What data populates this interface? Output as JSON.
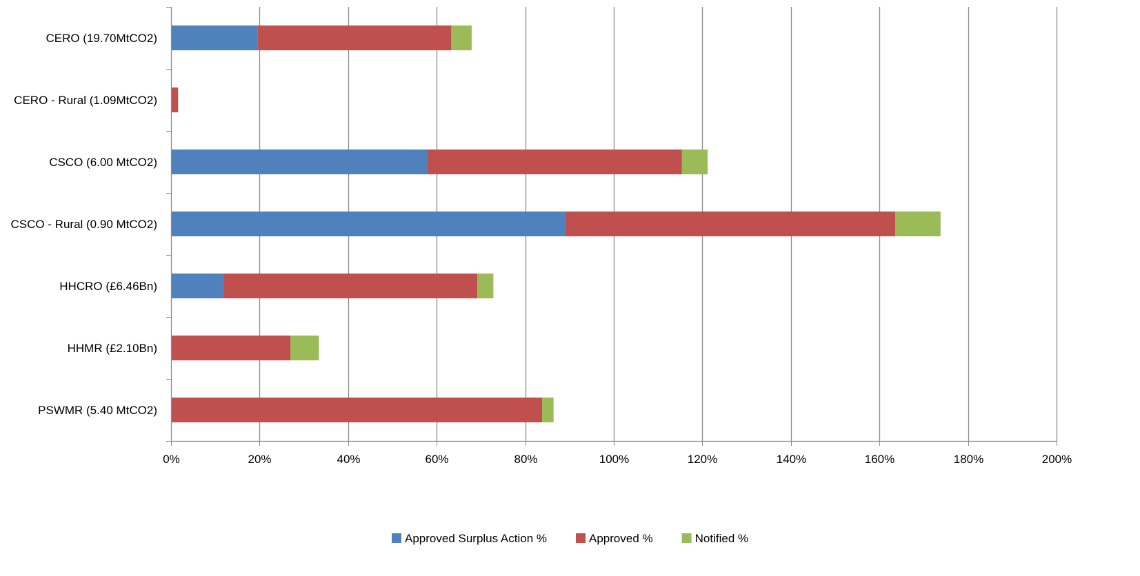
{
  "chart_data": {
    "type": "bar",
    "orientation": "horizontal",
    "stacked": true,
    "title": "",
    "xlabel": "",
    "ylabel": "",
    "categories": [
      "CERO (19.70MtCO2)",
      "CERO - Rural (1.09MtCO2)",
      "CSCO (6.00 MtCO2)",
      "CSCO - Rural (0.90 MtCO2)",
      "HHCRO (£6.46Bn)",
      "HHMR (£2.10Bn)",
      "PSWMR (5.40 MtCO2)"
    ],
    "series": [
      {
        "name": "Approved Surplus Action %",
        "color": "#4F81BD",
        "values": [
          19.5,
          0,
          57.8,
          89,
          11.8,
          0,
          0
        ]
      },
      {
        "name": "Approved %",
        "color": "#C0504D",
        "values": [
          43.8,
          1.6,
          57.6,
          74.6,
          57.4,
          27,
          83.8
        ]
      },
      {
        "name": "Notified %",
        "color": "#9BBB59",
        "values": [
          4.6,
          0,
          5.8,
          10.2,
          3.6,
          6.4,
          2.6
        ]
      }
    ],
    "xlim": [
      0,
      200
    ],
    "x_ticks": [
      "0%",
      "20%",
      "40%",
      "60%",
      "80%",
      "100%",
      "120%",
      "140%",
      "160%",
      "180%",
      "200%"
    ],
    "grid": "vertical",
    "legend": "bottom"
  }
}
